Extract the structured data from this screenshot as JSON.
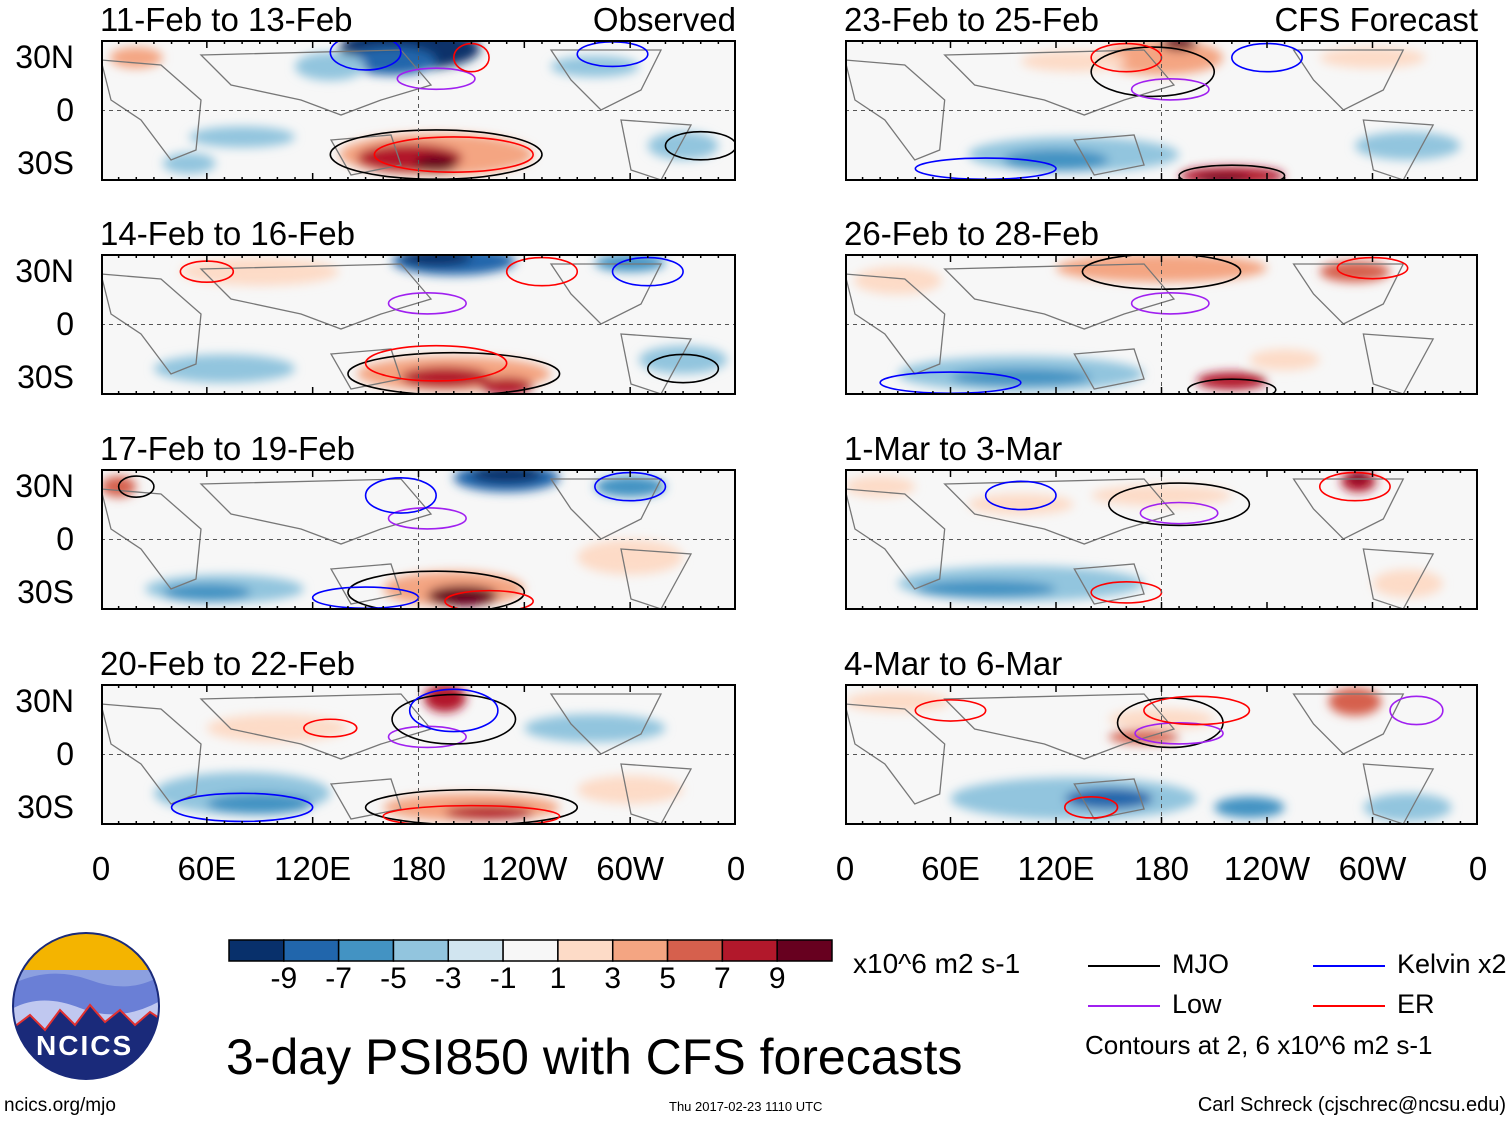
{
  "chart_data": {
    "type": "heatmap",
    "title": "3-day PSI850 with CFS forecasts",
    "variable": "PSI850 anomaly",
    "units": "x10^6 m2 s-1",
    "columns": [
      {
        "label": "Observed",
        "panels": [
          "11-Feb to 13-Feb",
          "14-Feb to 16-Feb",
          "17-Feb to 19-Feb",
          "20-Feb to 22-Feb"
        ]
      },
      {
        "label": "CFS Forecast",
        "panels": [
          "23-Feb to 25-Feb",
          "26-Feb to 28-Feb",
          "1-Mar to 3-Mar",
          "4-Mar to 6-Mar"
        ]
      }
    ],
    "yticks": [
      "30N",
      "0",
      "30S"
    ],
    "xticks": [
      "0",
      "60E",
      "120E",
      "180",
      "120W",
      "60W",
      "0"
    ],
    "lat_range": [
      -40,
      40
    ],
    "lon_range": [
      0,
      360
    ],
    "colorbar": {
      "levels": [
        "-9",
        "-7",
        "-5",
        "-3",
        "-1",
        "1",
        "3",
        "5",
        "7",
        "9"
      ],
      "colors": [
        "#08306b",
        "#2166ac",
        "#4393c3",
        "#92c5de",
        "#d1e5f0",
        "#f7f7f7",
        "#fddbc7",
        "#f4a582",
        "#d6604d",
        "#b2182b",
        "#67001f"
      ]
    },
    "legend": [
      {
        "name": "MJO",
        "color": "#000000"
      },
      {
        "name": "Low",
        "color": "#a020f0"
      },
      {
        "name": "Kelvin x2",
        "color": "#0000ff"
      },
      {
        "name": "ER",
        "color": "#ff0000"
      }
    ],
    "contour_note": "Contours at 2, 6 x10^6 m2 s-1"
  },
  "footer": {
    "site": "ncics.org/mjo",
    "timestamp": "Thu 2017-02-23 1110 UTC",
    "author": "Carl Schreck (cjschrec@ncsu.edu)",
    "logo_text": "NCICS"
  }
}
